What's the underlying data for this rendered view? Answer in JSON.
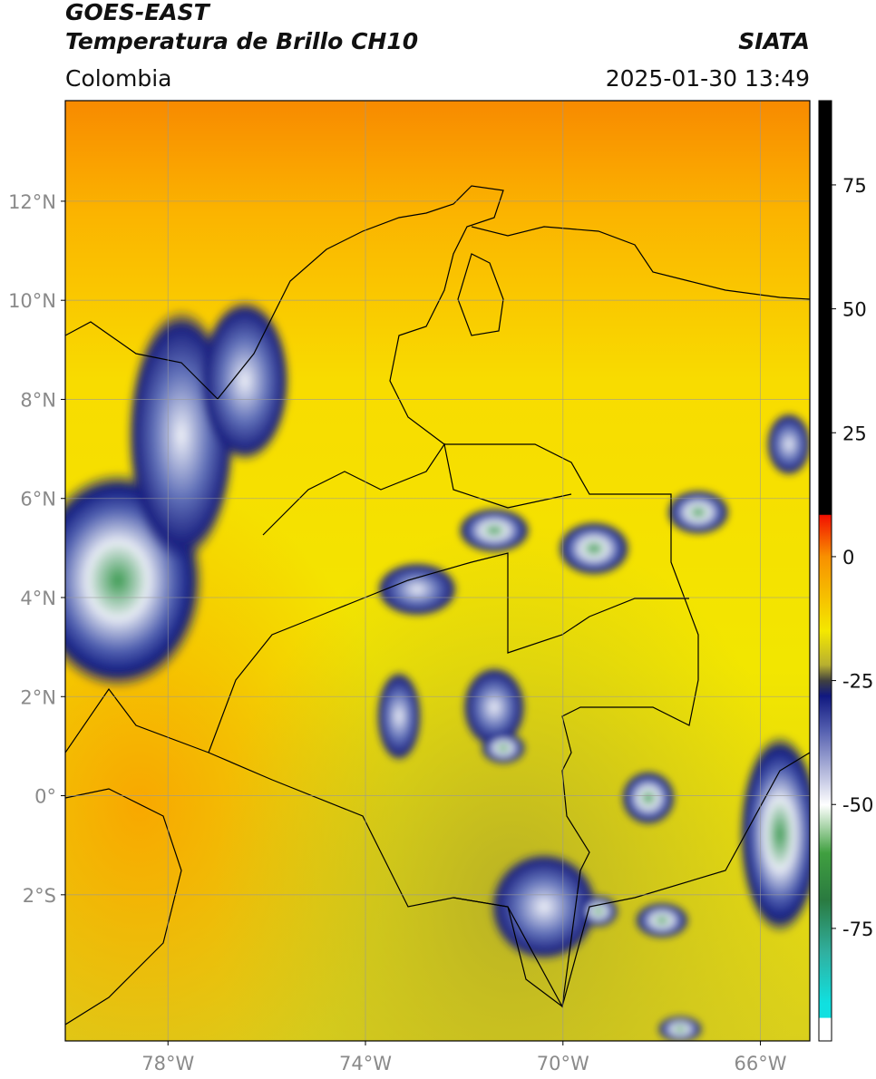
{
  "header": {
    "title": "GOES-EAST",
    "subtitle": "Temperatura de Brillo CH10",
    "source": "SIATA",
    "region": "Colombia",
    "timestamp": "2025-01-30 13:49"
  },
  "map": {
    "xlim": [
      -80.08,
      -65
    ],
    "ylim": [
      -4.95,
      14.03
    ],
    "xticks": [
      {
        "value": -78,
        "label": "78°W"
      },
      {
        "value": -74,
        "label": "74°W"
      },
      {
        "value": -70,
        "label": "70°W"
      },
      {
        "value": -66,
        "label": "66°W"
      }
    ],
    "yticks": [
      {
        "value": 12,
        "label": "12°N"
      },
      {
        "value": 10,
        "label": "10°N"
      },
      {
        "value": 8,
        "label": "8°N"
      },
      {
        "value": 6,
        "label": "6°N"
      },
      {
        "value": 4,
        "label": "4°N"
      },
      {
        "value": 2,
        "label": "2°N"
      },
      {
        "value": 0,
        "label": "0°"
      },
      {
        "value": -2,
        "label": "2°S"
      }
    ],
    "grid": true
  },
  "colorbar": {
    "lim": [
      -97.7,
      92
    ],
    "ticks": [
      75,
      50,
      25,
      0,
      -25,
      -50,
      -75
    ]
  }
}
